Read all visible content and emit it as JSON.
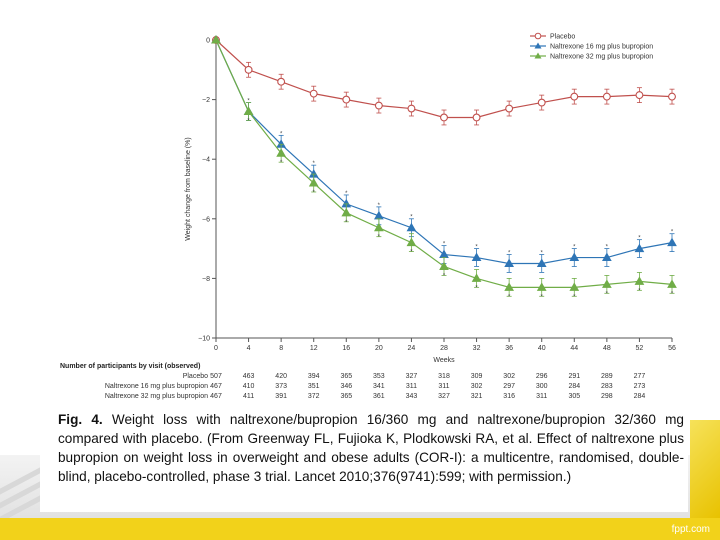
{
  "chart_data": {
    "type": "line",
    "xlabel": "Weeks",
    "ylabel": "Weight change from baseline (%)",
    "x": [
      0,
      4,
      8,
      12,
      16,
      20,
      24,
      28,
      32,
      36,
      40,
      44,
      48,
      52,
      56
    ],
    "xticks": [
      "0",
      "4",
      "8",
      "12",
      "16",
      "20",
      "24",
      "28",
      "32",
      "36",
      "40",
      "44",
      "48",
      "52",
      "56"
    ],
    "xlim": [
      0,
      56
    ],
    "ylim": [
      -10,
      0
    ],
    "yticks": [
      0,
      -2,
      -4,
      -6,
      -8,
      -10
    ],
    "ytick_labels": [
      "0",
      "−2",
      "−4",
      "−6",
      "−8",
      "−10"
    ],
    "legend_position": "top-right",
    "series": [
      {
        "name": "Placebo",
        "color": "#c0504d",
        "marker": "circle-open",
        "values": [
          0,
          -1.0,
          -1.4,
          -1.8,
          -2.0,
          -2.2,
          -2.3,
          -2.6,
          -2.6,
          -2.3,
          -2.1,
          -1.9,
          -1.9,
          -1.85,
          -1.9
        ],
        "error": 0.25
      },
      {
        "name": "Naltrexone 16 mg plus bupropion",
        "color": "#2e75b6",
        "marker": "triangle",
        "values": [
          0,
          -2.4,
          -3.5,
          -4.5,
          -5.5,
          -5.9,
          -6.3,
          -7.2,
          -7.3,
          -7.5,
          -7.5,
          -7.3,
          -7.3,
          -7.0,
          -6.8
        ],
        "error": 0.3
      },
      {
        "name": "Naltrexone 32 mg plus bupropion",
        "color": "#70ad47",
        "marker": "triangle",
        "values": [
          0,
          -2.4,
          -3.8,
          -4.8,
          -5.8,
          -6.3,
          -6.8,
          -7.6,
          -8.0,
          -8.3,
          -8.3,
          -8.3,
          -8.2,
          -8.1,
          -8.2
        ],
        "error": 0.3
      }
    ],
    "significance_marks": {
      "naltrexone16": "*",
      "naltrexone32": "*"
    },
    "participants_table": {
      "title": "Number of participants by visit (observed)",
      "rows": [
        {
          "label": "Placebo",
          "values": [
            "507",
            "463",
            "420",
            "394",
            "365",
            "353",
            "327",
            "318",
            "309",
            "302",
            "296",
            "291",
            "289",
            "277"
          ]
        },
        {
          "label": "Naltrexone 16 mg plus bupropion",
          "values": [
            "467",
            "410",
            "373",
            "351",
            "346",
            "341",
            "311",
            "311",
            "302",
            "297",
            "300",
            "284",
            "283",
            "273"
          ]
        },
        {
          "label": "Naltrexone 32 mg plus bupropion",
          "values": [
            "467",
            "411",
            "391",
            "372",
            "365",
            "361",
            "343",
            "327",
            "321",
            "316",
            "311",
            "305",
            "298",
            "284"
          ]
        }
      ]
    }
  },
  "caption": {
    "fig_label": "Fig. 4.",
    "text": "Weight loss with naltrexone/bupropion 16/360 mg and naltrexone/bupropion 32/360 mg compared with placebo. (From Greenway FL, Fujioka K, Plodkowski RA, et al. Effect of naltrexone plus bupropion on weight loss in overweight and obese adults (COR-I): a multicentre, randomised, double-blind, placebo-controlled, phase 3 trial. Lancet 2010;376(9741):599; with permission.)"
  },
  "watermark": "fppt.com"
}
